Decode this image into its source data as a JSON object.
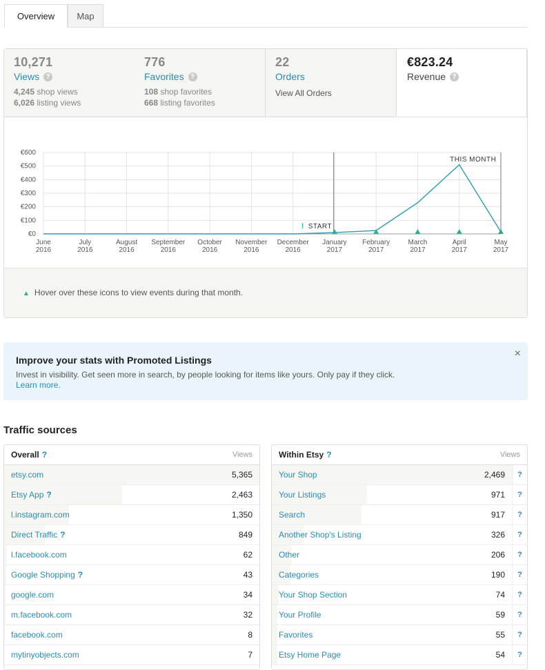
{
  "tabs": [
    {
      "label": "Overview",
      "active": true
    },
    {
      "label": "Map",
      "active": false
    }
  ],
  "stats": [
    {
      "value": "10,271",
      "label": "Views",
      "help": true,
      "details": [
        {
          "count": "4,245",
          "text": "shop views"
        },
        {
          "count": "6,026",
          "text": "listing views"
        }
      ]
    },
    {
      "value": "776",
      "label": "Favorites",
      "help": true,
      "details": [
        {
          "count": "108",
          "text": "shop favorites"
        },
        {
          "count": "668",
          "text": "listing favorites"
        }
      ]
    },
    {
      "value": "22",
      "label": "Orders",
      "help": false,
      "link": "View All Orders"
    },
    {
      "value": "€823.24",
      "label": "Revenue",
      "help": true
    }
  ],
  "chart_data": {
    "type": "line",
    "x": [
      "June 2016",
      "July 2016",
      "August 2016",
      "September 2016",
      "October 2016",
      "November 2016",
      "December 2016",
      "January 2017",
      "February 2017",
      "March 2017",
      "April 2017",
      "May 2017"
    ],
    "x_ticks": [
      {
        "month": "June",
        "year": "2016"
      },
      {
        "month": "July",
        "year": "2016"
      },
      {
        "month": "August",
        "year": "2016"
      },
      {
        "month": "September",
        "year": "2016"
      },
      {
        "month": "October",
        "year": "2016"
      },
      {
        "month": "November",
        "year": "2016"
      },
      {
        "month": "December",
        "year": "2016"
      },
      {
        "month": "January",
        "year": "2017"
      },
      {
        "month": "February",
        "year": "2017"
      },
      {
        "month": "March",
        "year": "2017"
      },
      {
        "month": "April",
        "year": "2017"
      },
      {
        "month": "May",
        "year": "2017"
      }
    ],
    "series": [
      {
        "values": [
          0,
          0,
          0,
          0,
          0,
          0,
          0,
          10,
          25,
          230,
          510,
          15
        ]
      }
    ],
    "y_ticks": [
      "€0",
      "€100",
      "€200",
      "€300",
      "€400",
      "€500",
      "€600"
    ],
    "ylim": [
      0,
      600
    ],
    "grid": true,
    "event_markers": [
      "January 2017",
      "February 2017",
      "March 2017",
      "April 2017",
      "May 2017"
    ],
    "annotations": [
      {
        "text": "START",
        "icon": "!",
        "at": "December 2016"
      },
      {
        "text": "THIS MONTH",
        "at": "April 2017"
      }
    ],
    "line_color": "#2a9cb4",
    "marker_color": "#2bb08f"
  },
  "legend_note": "Hover over these icons to view events during that month.",
  "promo": {
    "title": "Improve your stats with Promoted Listings",
    "body": "Invest in visibility. Get seen more in search, by people looking for items like yours. Only pay if they click.",
    "link": "Learn more.",
    "close": "×"
  },
  "traffic": {
    "title": "Traffic sources",
    "overall": {
      "header": "Overall",
      "col": "Views",
      "max": 5365,
      "rows": [
        {
          "name": "etsy.com",
          "value": "5,365",
          "n": 5365,
          "help": false
        },
        {
          "name": "Etsy App",
          "value": "2,463",
          "n": 2463,
          "help": true
        },
        {
          "name": "l.instagram.com",
          "value": "1,350",
          "n": 1350,
          "help": false
        },
        {
          "name": "Direct Traffic",
          "value": "849",
          "n": 849,
          "help": true
        },
        {
          "name": "l.facebook.com",
          "value": "62",
          "n": 62,
          "help": false
        },
        {
          "name": "Google Shopping",
          "value": "43",
          "n": 43,
          "help": true
        },
        {
          "name": "google.com",
          "value": "34",
          "n": 34,
          "help": false
        },
        {
          "name": "m.facebook.com",
          "value": "32",
          "n": 32,
          "help": false
        },
        {
          "name": "facebook.com",
          "value": "8",
          "n": 8,
          "help": false
        },
        {
          "name": "mytinyobjects.com",
          "value": "7",
          "n": 7,
          "help": false
        }
      ]
    },
    "within": {
      "header": "Within Etsy",
      "col": "Views",
      "max": 2469,
      "rows": [
        {
          "name": "Your Shop",
          "value": "2,469",
          "n": 2469
        },
        {
          "name": "Your Listings",
          "value": "971",
          "n": 971
        },
        {
          "name": "Search",
          "value": "917",
          "n": 917
        },
        {
          "name": "Another Shop's Listing",
          "value": "326",
          "n": 326
        },
        {
          "name": "Other",
          "value": "206",
          "n": 206
        },
        {
          "name": "Categories",
          "value": "190",
          "n": 190
        },
        {
          "name": "Your Shop Section",
          "value": "74",
          "n": 74
        },
        {
          "name": "Your Profile",
          "value": "59",
          "n": 59
        },
        {
          "name": "Favorites",
          "value": "55",
          "n": 55
        },
        {
          "name": "Etsy Home Page",
          "value": "54",
          "n": 54
        }
      ]
    }
  }
}
